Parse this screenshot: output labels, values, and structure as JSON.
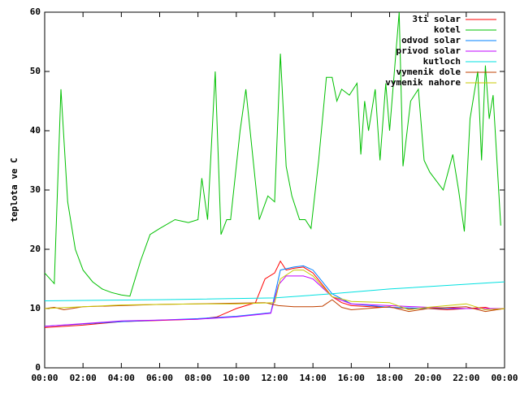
{
  "chart_data": {
    "type": "line",
    "ylabel": "teplota ve C",
    "ylim": [
      0,
      60
    ],
    "yticks": [
      0,
      10,
      20,
      30,
      40,
      50,
      60
    ],
    "xlim": [
      0,
      24
    ],
    "xticks": [
      {
        "value": 0,
        "label": "00:00"
      },
      {
        "value": 2,
        "label": "02:00"
      },
      {
        "value": 4,
        "label": "04:00"
      },
      {
        "value": 6,
        "label": "06:00"
      },
      {
        "value": 8,
        "label": "08:00"
      },
      {
        "value": 10,
        "label": "10:00"
      },
      {
        "value": 12,
        "label": "12:00"
      },
      {
        "value": 14,
        "label": "14:00"
      },
      {
        "value": 16,
        "label": "16:00"
      },
      {
        "value": 18,
        "label": "18:00"
      },
      {
        "value": 20,
        "label": "20:00"
      },
      {
        "value": 22,
        "label": "22:00"
      },
      {
        "value": 24,
        "label": "00:00"
      }
    ],
    "legend": "top-right",
    "series": [
      {
        "name": "3ti solar",
        "color": "#ff0000",
        "x": [
          0,
          2,
          4,
          6,
          8,
          9,
          10,
          10.5,
          11,
          11.5,
          12,
          12.3,
          12.6,
          13,
          13.5,
          14,
          15,
          15.5,
          16,
          17,
          18,
          19,
          20,
          21,
          22,
          23,
          23.5,
          24
        ],
        "values": [
          6.8,
          7.2,
          7.8,
          8.0,
          8.2,
          8.6,
          10,
          10.5,
          11,
          15,
          16,
          18,
          16.5,
          16.8,
          17,
          16,
          12,
          11,
          10.5,
          10.3,
          10.2,
          10,
          10,
          9.8,
          10,
          10.2,
          9.8,
          10
        ]
      },
      {
        "name": "kotel",
        "color": "#00c000",
        "x": [
          0,
          0.5,
          0.85,
          1.2,
          1.6,
          2,
          2.5,
          3,
          3.5,
          4,
          4.45,
          5,
          5.5,
          6,
          6.8,
          7.5,
          8,
          8.2,
          8.5,
          8.9,
          9.2,
          9.5,
          9.7,
          10.2,
          10.5,
          11.2,
          11.65,
          12.0,
          12.3,
          12.6,
          12.9,
          13.3,
          13.6,
          13.9,
          14.3,
          14.7,
          15.0,
          15.25,
          15.5,
          15.9,
          16.3,
          16.5,
          16.7,
          16.9,
          17.25,
          17.5,
          17.8,
          18.0,
          18.5,
          18.7,
          19.1,
          19.5,
          19.8,
          20.1,
          20.8,
          21.3,
          21.6,
          21.9,
          22.2,
          22.6,
          22.8,
          23.0,
          23.2,
          23.4,
          23.8
        ],
        "values": [
          16,
          14.2,
          47,
          28,
          20,
          16.5,
          14.5,
          13.3,
          12.7,
          12.3,
          12.1,
          18,
          22.5,
          23.5,
          25,
          24.5,
          25,
          32,
          25,
          50,
          22.5,
          25,
          25,
          40,
          47,
          25,
          29,
          28,
          53,
          34,
          29,
          25,
          25,
          23.5,
          35,
          49,
          49,
          45,
          47,
          46,
          48,
          36,
          45,
          40,
          47,
          35,
          48,
          40,
          60,
          34,
          45,
          47,
          35,
          33,
          30,
          36,
          30,
          23,
          42,
          50,
          35,
          51,
          42,
          46,
          24
        ]
      },
      {
        "name": "odvod solar",
        "color": "#0080ff",
        "x": [
          0,
          4,
          8,
          10,
          11.8,
          12.3,
          13,
          13.5,
          14,
          15,
          16,
          18,
          20,
          22,
          24
        ],
        "values": [
          7,
          7.8,
          8.3,
          8.7,
          9.3,
          16.5,
          17,
          17.2,
          16.5,
          12.5,
          10.8,
          10.2,
          10,
          10,
          10
        ]
      },
      {
        "name": "privod solar",
        "color": "#c000ff",
        "x": [
          0,
          4,
          8,
          10,
          11.8,
          12.2,
          12.6,
          13.5,
          14,
          15,
          16,
          18,
          20,
          22,
          24
        ],
        "values": [
          7,
          7.9,
          8.2,
          8.6,
          9.2,
          14,
          15.5,
          15.5,
          15,
          12,
          10.8,
          10.5,
          10.2,
          10,
          10
        ]
      },
      {
        "name": "kutloch",
        "color": "#00e0e0",
        "x": [
          0,
          6,
          12,
          15,
          18,
          21,
          24
        ],
        "values": [
          11.3,
          11.5,
          11.8,
          12.5,
          13.3,
          13.9,
          14.5
        ]
      },
      {
        "name": "vymenik dole",
        "color": "#c04000",
        "x": [
          0,
          0.5,
          1,
          2,
          4,
          6,
          8,
          10,
          11.5,
          12.2,
          13,
          14,
          14.5,
          15,
          15.5,
          16,
          18,
          19,
          20,
          22,
          23,
          24
        ],
        "values": [
          10,
          10.2,
          9.8,
          10.3,
          10.5,
          10.7,
          10.8,
          10.9,
          11,
          10.5,
          10.3,
          10.3,
          10.4,
          11.5,
          10.2,
          9.8,
          10.3,
          9.5,
          10,
          10.3,
          9.5,
          10
        ]
      },
      {
        "name": "vymenik nahore",
        "color": "#c8c800",
        "x": [
          0,
          2,
          4,
          6,
          8,
          10,
          12,
          12.3,
          13,
          13.5,
          14,
          15,
          16,
          18,
          19,
          20,
          22,
          23,
          24
        ],
        "values": [
          10,
          10.3,
          10.6,
          10.7,
          10.8,
          10.8,
          11,
          15,
          16.5,
          16.5,
          15.5,
          12,
          11.2,
          11,
          9.8,
          10.2,
          10.8,
          9.8,
          10
        ]
      }
    ]
  }
}
